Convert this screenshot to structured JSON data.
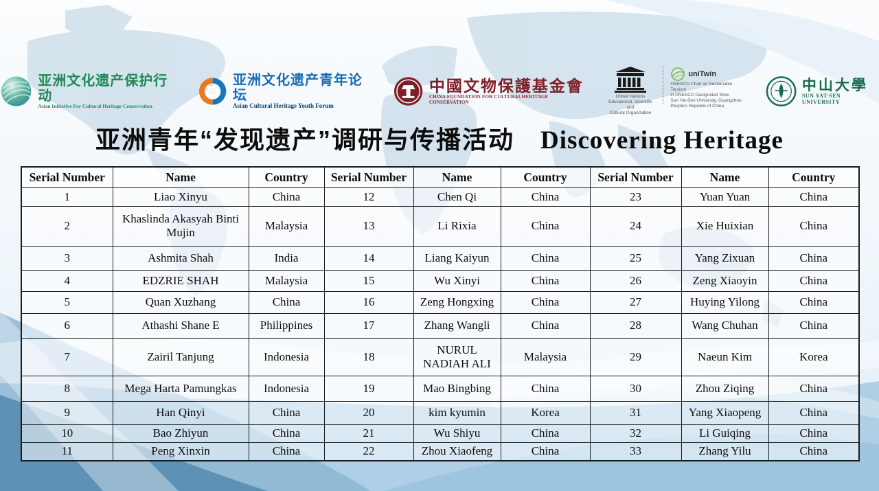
{
  "page": {
    "title_zh": "亚洲青年“发现遗产”调研与传播活动",
    "title_en": "Discovering Heritage"
  },
  "logos": [
    {
      "zh": "亚洲文化遗产保护行动",
      "en": "Asian Initiative For Cultural Heritage Conservation"
    },
    {
      "zh": "亚洲文化遗产青年论坛",
      "en": "Asian Cultural Heritage Youth Forum"
    },
    {
      "zh": "中國文物保護基金會",
      "en": "CHINA FOUNDATION FOR CULTURALHERITAGE CONSERVATION"
    },
    {
      "unesco_lines": "United Nations\nEducational, Scientific and\nCultural Organization",
      "unitwin": "uniTwin",
      "chair_lines": "UNESCO Chair on Sustainable Tourism\nin UNESCO Designated Sites\nSun Yat-Sen University, Guangzhou\nPeople's Republic of China"
    },
    {
      "zh": "中山大學",
      "en": "SUN YAT-SEN UNIVERSITY"
    }
  ],
  "table": {
    "column_headers": [
      "Serial Number",
      "Name",
      "Country"
    ],
    "blocks": 3,
    "rows_per_block": 11,
    "participants": [
      {
        "serial": "1",
        "name": "Liao Xinyu",
        "country": "China"
      },
      {
        "serial": "2",
        "name": "Khaslinda Akasyah Binti Mujin",
        "country": "Malaysia"
      },
      {
        "serial": "3",
        "name": "Ashmita Shah",
        "country": "India"
      },
      {
        "serial": "4",
        "name": "EDZRIE SHAH",
        "country": "Malaysia"
      },
      {
        "serial": "5",
        "name": "Quan Xuzhang",
        "country": "China"
      },
      {
        "serial": "6",
        "name": "Athashi Shane E",
        "country": "Philippines"
      },
      {
        "serial": "7",
        "name": "Zairil Tanjung",
        "country": "Indonesia"
      },
      {
        "serial": "8",
        "name": "Mega Harta Pamungkas",
        "country": "Indonesia"
      },
      {
        "serial": "9",
        "name": "Han Qinyi",
        "country": "China"
      },
      {
        "serial": "10",
        "name": "Bao Zhiyun",
        "country": "China"
      },
      {
        "serial": "11",
        "name": "Peng Xinxin",
        "country": "China"
      },
      {
        "serial": "12",
        "name": "Chen Qi",
        "country": "China"
      },
      {
        "serial": "13",
        "name": "Li Rixia",
        "country": "China"
      },
      {
        "serial": "14",
        "name": "Liang Kaiyun",
        "country": "China"
      },
      {
        "serial": "15",
        "name": "Wu Xinyi",
        "country": "China"
      },
      {
        "serial": "16",
        "name": "Zeng Hongxing",
        "country": "China"
      },
      {
        "serial": "17",
        "name": "Zhang Wangli",
        "country": "China"
      },
      {
        "serial": "18",
        "name": "NURUL NADIAH ALI",
        "country": "Malaysia"
      },
      {
        "serial": "19",
        "name": "Mao Bingbing",
        "country": "China"
      },
      {
        "serial": "20",
        "name": "kim kyumin",
        "country": "Korea"
      },
      {
        "serial": "21",
        "name": "Wu Shiyu",
        "country": "China"
      },
      {
        "serial": "22",
        "name": "Zhou Xiaofeng",
        "country": "China"
      },
      {
        "serial": "23",
        "name": "Yuan Yuan",
        "country": "China"
      },
      {
        "serial": "24",
        "name": "Xie Huixian",
        "country": "China"
      },
      {
        "serial": "25",
        "name": "Yang Zixuan",
        "country": "China"
      },
      {
        "serial": "26",
        "name": "Zeng Xiaoyin",
        "country": "China"
      },
      {
        "serial": "27",
        "name": "Huying Yilong",
        "country": "China"
      },
      {
        "serial": "28",
        "name": "Wang Chuhan",
        "country": "China"
      },
      {
        "serial": "29",
        "name": "Naeun Kim",
        "country": "Korea"
      },
      {
        "serial": "30",
        "name": "Zhou Ziqing",
        "country": "China"
      },
      {
        "serial": "31",
        "name": "Yang Xiaopeng",
        "country": "China"
      },
      {
        "serial": "32",
        "name": "Li Guiqing",
        "country": "China"
      },
      {
        "serial": "33",
        "name": "Zhang Yilu",
        "country": "China"
      }
    ]
  },
  "colors": {
    "table_border": "#1a1a1a",
    "swoosh_light": "#aecfe6",
    "swoosh_mid": "#8cb6d3",
    "swoosh_deep": "#5d92b6",
    "map_fill": "#cfdfeb",
    "logo_green": "#1f8a55",
    "logo_blue": "#1a6bb5",
    "logo_darkred": "#7d1f28",
    "sysu_green": "#176b4b"
  }
}
